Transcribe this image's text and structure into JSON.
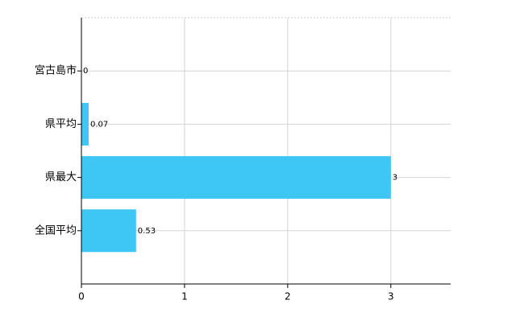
{
  "chart_data": {
    "type": "hbar",
    "categories": [
      "宮古島市",
      "県平均",
      "県最大",
      "全国平均"
    ],
    "values": [
      0,
      0.07,
      3,
      0.53
    ],
    "color": "#3ec6f4",
    "xlim": [
      0,
      3.58
    ],
    "xticks": [
      0,
      1,
      2,
      3
    ],
    "grid": true
  }
}
